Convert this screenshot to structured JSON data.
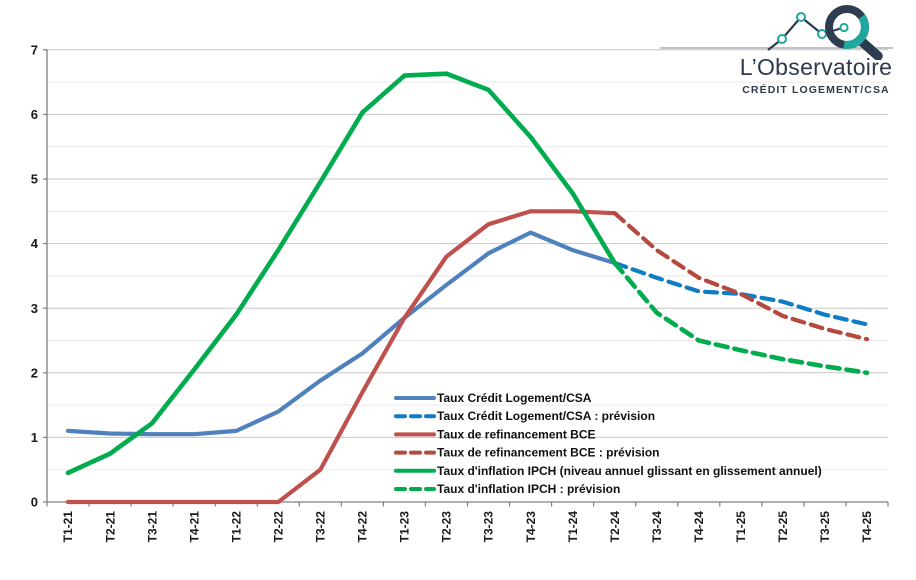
{
  "logo": {
    "title": "L’Observatoire",
    "subtitle": "CRÉDIT LOGEMENT/CSA",
    "colors": {
      "dark": "#2d3c4e",
      "teal": "#1fa8a0",
      "rule": "#9aa0a6"
    }
  },
  "chart_data": {
    "type": "line",
    "title": "",
    "xlabel": "",
    "ylabel": "",
    "ylim": [
      0,
      7
    ],
    "yticks": [
      0,
      1,
      2,
      3,
      4,
      5,
      6,
      7
    ],
    "grid": "major-integer + minor-half",
    "legend_position": "inside bottom-center",
    "categories": [
      "T1-21",
      "T2-21",
      "T3-21",
      "T4-21",
      "T1-22",
      "T2-22",
      "T3-22",
      "T4-22",
      "T1-23",
      "T2-23",
      "T3-23",
      "T4-23",
      "T1-24",
      "T2-24",
      "T3-24",
      "T4-24",
      "T1-25",
      "T2-25",
      "T3-25",
      "T4-25"
    ],
    "series": [
      {
        "name": "Taux Crédit Logement/CSA",
        "color": "#4F81BD",
        "style": "solid",
        "values": [
          1.1,
          1.06,
          1.05,
          1.05,
          1.1,
          1.4,
          1.88,
          2.3,
          2.85,
          3.36,
          3.85,
          4.17,
          3.9,
          3.7,
          null,
          null,
          null,
          null,
          null,
          null
        ]
      },
      {
        "name": "Taux Crédit Logement/CSA : prévision",
        "color": "#0F7DC5",
        "style": "dashed",
        "values": [
          null,
          null,
          null,
          null,
          null,
          null,
          null,
          null,
          null,
          null,
          null,
          null,
          null,
          3.7,
          3.47,
          3.26,
          3.22,
          3.1,
          2.9,
          2.75
        ]
      },
      {
        "name": "Taux de refinancement BCE",
        "color": "#C0504D",
        "style": "solid",
        "values": [
          0,
          0,
          0,
          0,
          0,
          0,
          0.5,
          1.7,
          2.85,
          3.8,
          4.3,
          4.5,
          4.5,
          4.47,
          null,
          null,
          null,
          null,
          null,
          null
        ]
      },
      {
        "name": "Taux de refinancement BCE : prévision",
        "color": "#B4493F",
        "style": "dashed",
        "values": [
          null,
          null,
          null,
          null,
          null,
          null,
          null,
          null,
          null,
          null,
          null,
          null,
          null,
          4.47,
          3.9,
          3.47,
          3.22,
          2.88,
          2.68,
          2.52
        ]
      },
      {
        "name": "Taux d'inflation IPCH (niveau annuel glissant en glissement annuel)",
        "color": "#00AC4E",
        "style": "solid",
        "values": [
          0.45,
          0.75,
          1.22,
          2.05,
          2.9,
          3.9,
          4.95,
          6.03,
          6.6,
          6.63,
          6.38,
          5.65,
          4.78,
          3.7,
          null,
          null,
          null,
          null,
          null,
          null
        ]
      },
      {
        "name": "Taux d'inflation IPCH : prévision",
        "color": "#00AC4E",
        "style": "dashed",
        "values": [
          null,
          null,
          null,
          null,
          null,
          null,
          null,
          null,
          null,
          null,
          null,
          null,
          null,
          3.7,
          2.93,
          2.5,
          2.35,
          2.21,
          2.1,
          2.0
        ]
      }
    ]
  }
}
